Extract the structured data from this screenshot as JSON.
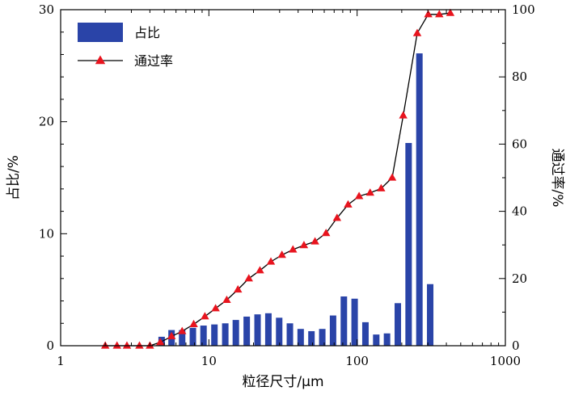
{
  "chart_data": {
    "type": "bar+line",
    "x_scale": "log",
    "xlim": [
      1,
      1000
    ],
    "xlabel": "粒径尺寸/μm",
    "ylabel_left": "占比/%",
    "ylabel_right": "通过率/%",
    "ylim_left": [
      0,
      30
    ],
    "ylim_right": [
      0,
      100
    ],
    "x_ticks": [
      1,
      10,
      100,
      1000
    ],
    "y_ticks_left": [
      0,
      10,
      20,
      30
    ],
    "y_ticks_right": [
      0,
      20,
      40,
      60,
      80,
      100
    ],
    "legend_position": "top-left",
    "colors": {
      "bars": "#2a44a8",
      "line": "#000000",
      "markers": "#e8141e"
    },
    "series": [
      {
        "name": "占比",
        "type": "bar",
        "axis": "left",
        "x": [
          4.8,
          5.6,
          6.6,
          7.8,
          9.2,
          10.9,
          12.9,
          15.2,
          18.0,
          21.3,
          25.2,
          29.8,
          35.2,
          41.6,
          49.2,
          58.2,
          68.8,
          81.4,
          96.2,
          113.8,
          134.6,
          159.1,
          188.2,
          222.5,
          263.1,
          311.1,
          367.9
        ],
        "values": [
          0.8,
          1.4,
          1.4,
          1.6,
          1.8,
          1.9,
          2.0,
          2.3,
          2.6,
          2.8,
          2.9,
          2.5,
          2.0,
          1.5,
          1.3,
          1.5,
          2.7,
          4.4,
          4.2,
          2.1,
          1.0,
          1.1,
          3.8,
          18.1,
          26.1,
          5.5,
          0.0
        ]
      },
      {
        "name": "通过率",
        "type": "line",
        "axis": "right",
        "x": [
          2.0,
          2.4,
          2.8,
          3.4,
          4.0,
          4.7,
          5.6,
          6.6,
          7.9,
          9.4,
          11.1,
          13.2,
          15.7,
          18.6,
          22.1,
          26.2,
          31.1,
          36.9,
          43.8,
          52.0,
          61.7,
          73.2,
          86.9,
          103.1,
          122.4,
          145.2,
          172.4,
          204.6,
          254.4,
          301.9,
          358.3,
          425.2
        ],
        "values": [
          0,
          0,
          0,
          0,
          0,
          1,
          2.8,
          4.3,
          6.4,
          8.7,
          11.1,
          13.6,
          16.7,
          20.0,
          22.4,
          25.0,
          27.0,
          28.6,
          29.9,
          31.0,
          33.5,
          38.0,
          42.0,
          44.5,
          45.5,
          46.8,
          50.0,
          68.5,
          93.0,
          98.6,
          98.6,
          99.0
        ]
      }
    ]
  }
}
